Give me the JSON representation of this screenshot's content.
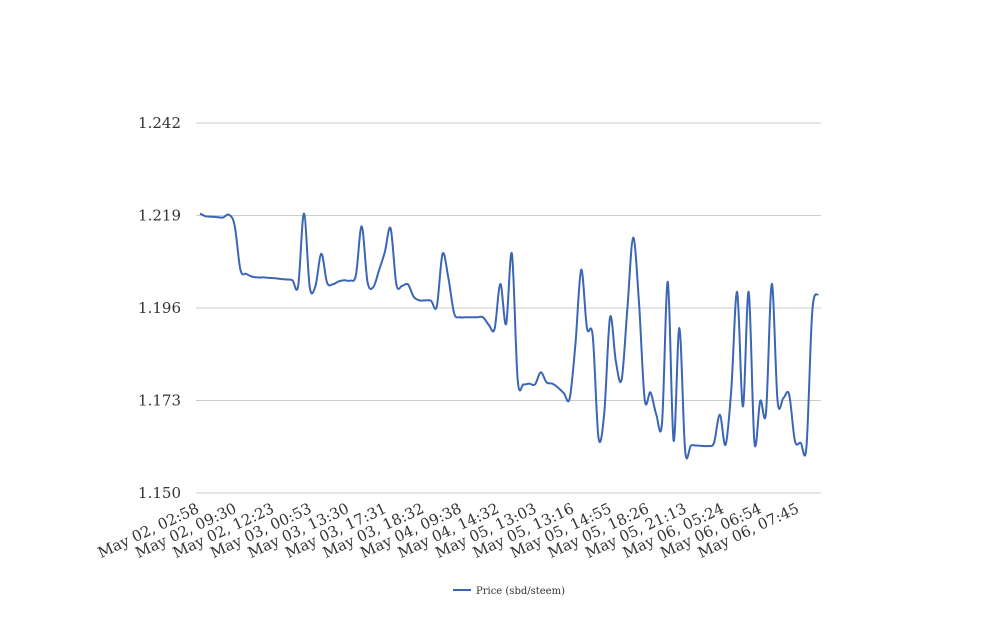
{
  "chart_data": {
    "type": "line",
    "title": "",
    "xlabel": "",
    "ylabel": "",
    "x_tick_labels": [
      "May 02, 02:58",
      "May 02, 09:30",
      "May 02, 12:23",
      "May 03, 00:53",
      "May 03, 13:30",
      "May 03, 17:31",
      "May 03, 18:32",
      "May 04, 09:38",
      "May 04, 14:32",
      "May 05, 13:03",
      "May 05, 13:16",
      "May 05, 14:55",
      "May 05, 18:26",
      "May 05, 21:13",
      "May 06, 05:24",
      "May 06, 06:54",
      "May 06, 07:45"
    ],
    "y_ticks": [
      "1.150",
      "1.173",
      "1.196",
      "1.219",
      "1.242"
    ],
    "ylim": [
      1.15,
      1.242
    ],
    "grid": true,
    "legend_position": "bottom-center",
    "series": [
      {
        "name": "Price (sbd/steem)",
        "color": "#3a66b5",
        "values": [
          1.2195,
          1.2188,
          1.2187,
          1.2186,
          1.2185,
          1.2192,
          1.2165,
          1.2055,
          1.2045,
          1.2038,
          1.2036,
          1.2036,
          1.2035,
          1.2034,
          1.2032,
          1.2031,
          1.2029,
          1.2015,
          1.2195,
          1.2012,
          1.2015,
          1.2095,
          1.2023,
          1.2019,
          1.2026,
          1.2029,
          1.2028,
          1.2042,
          1.2163,
          1.2025,
          1.2012,
          1.2054,
          1.2099,
          1.2158,
          1.2019,
          1.2015,
          1.2019,
          1.1988,
          1.1979,
          1.1979,
          1.1978,
          1.1964,
          1.2095,
          1.2035,
          1.1947,
          1.1937,
          1.1937,
          1.1937,
          1.1937,
          1.1937,
          1.1918,
          1.1908,
          1.202,
          1.192,
          1.2095,
          1.1782,
          1.177,
          1.1772,
          1.177,
          1.18,
          1.1775,
          1.1772,
          1.1762,
          1.1748,
          1.1735,
          1.187,
          1.2055,
          1.191,
          1.189,
          1.1637,
          1.17,
          1.1937,
          1.1827,
          1.1782,
          1.196,
          1.2135,
          1.1975,
          1.1732,
          1.175,
          1.1695,
          1.1675,
          1.2025,
          1.163,
          1.191,
          1.1605,
          1.1618,
          1.1618,
          1.1617,
          1.1617,
          1.1625,
          1.1695,
          1.162,
          1.176,
          1.2,
          1.1715,
          1.2,
          1.1625,
          1.1729,
          1.17,
          1.202,
          1.1729,
          1.1736,
          1.1745,
          1.163,
          1.1625,
          1.1615,
          1.195,
          1.1995
        ]
      }
    ]
  }
}
